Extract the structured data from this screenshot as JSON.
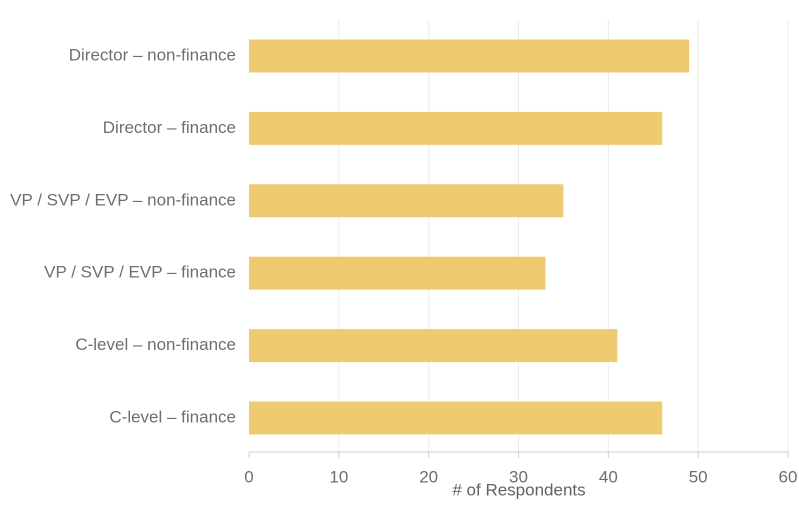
{
  "chart_data": {
    "type": "bar",
    "orientation": "horizontal",
    "title": "",
    "xlabel": "# of Respondents",
    "ylabel": "",
    "categories": [
      "Director – non-finance",
      "Director – finance",
      "VP / SVP / EVP – non-finance",
      "VP / SVP / EVP – finance",
      "C-level – non-finance",
      "C-level – finance"
    ],
    "values": [
      49,
      46,
      35,
      33,
      41,
      46
    ],
    "xlim": [
      0,
      60
    ],
    "xticks": [
      "0",
      "10",
      "20",
      "30",
      "40",
      "50",
      "60"
    ],
    "grid": "vertical",
    "legend": "none",
    "bar_color": "#eecb70",
    "grid_color": "#ececec",
    "axis_color": "#cfcfcf",
    "text_color": "#6b6f73"
  }
}
